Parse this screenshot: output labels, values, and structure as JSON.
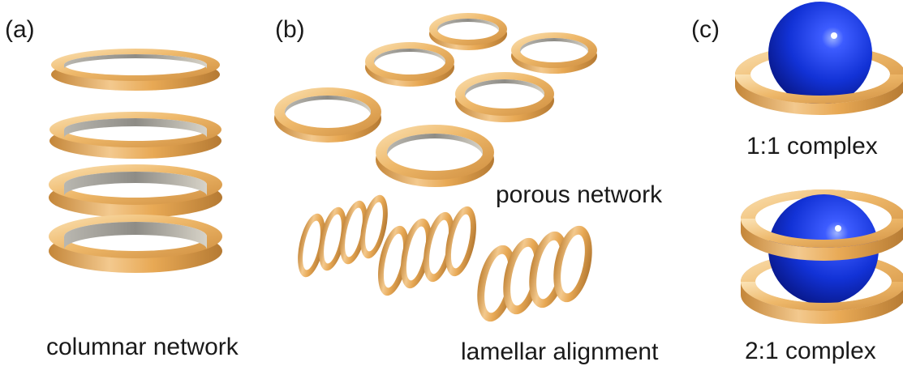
{
  "panels": {
    "a": {
      "label": "(a)",
      "caption": "columnar network"
    },
    "b": {
      "label": "(b)",
      "caption_porous": "porous network",
      "caption_lamellar": "lamellar alignment"
    },
    "c": {
      "label": "(c)",
      "caption_1": "1:1 complex",
      "caption_2": "2:1 complex"
    }
  },
  "colors": {
    "ring_gold": "#e7a84f",
    "ring_highlight": "#f8d9a6",
    "ring_shadow": "#a87a3a",
    "ring_inner": "#8a8a86",
    "sphere_blue": "#1030d8"
  }
}
